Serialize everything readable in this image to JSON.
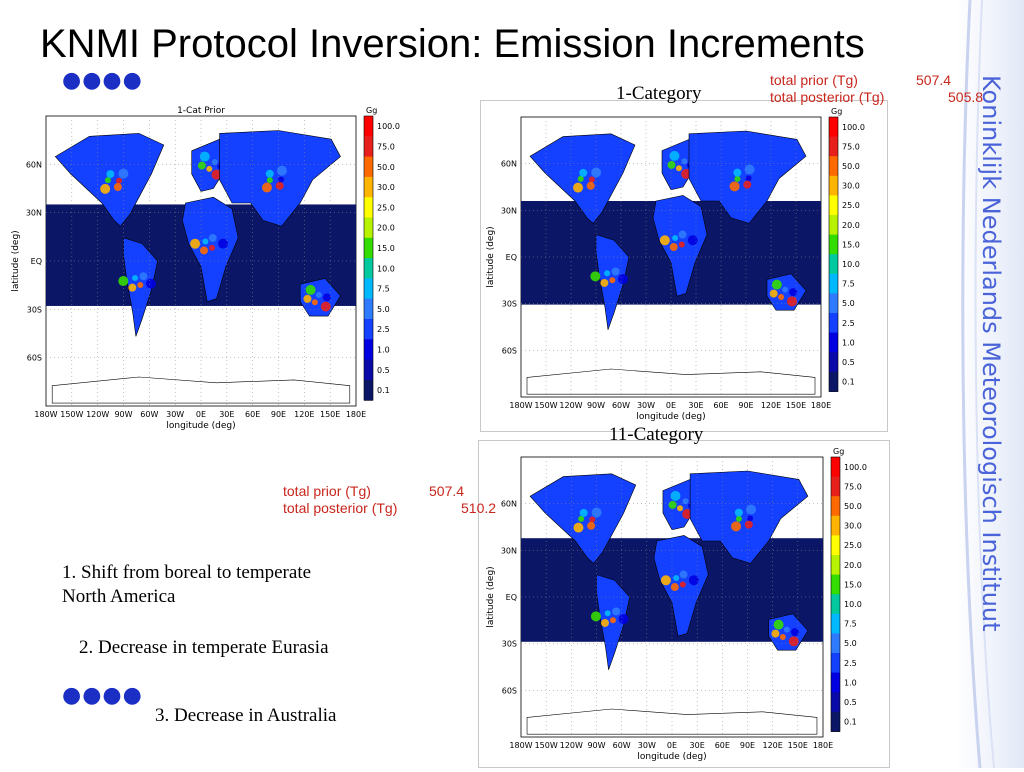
{
  "slide": {
    "title": "KNMI Protocol Inversion: Emission Increments",
    "logo_text": "Koninklijk Nederlands Meteorologisch Instituut"
  },
  "panels": {
    "prior": {
      "plot_title": "1-Cat Prior",
      "unit": "Gg",
      "ylabel": "latitude (deg)",
      "xlabel": "longitude (deg)",
      "x_ticks": [
        "180W",
        "150W",
        "120W",
        "90W",
        "60W",
        "30W",
        "0E",
        "30E",
        "60E",
        "90E",
        "120E",
        "150E",
        "180E"
      ],
      "y_ticks": [
        "60N",
        "30N",
        "EQ",
        "30S",
        "60S"
      ],
      "colorbar_ticks": [
        "100.0",
        "75.0",
        "50.0",
        "30.0",
        "25.0",
        "20.0",
        "15.0",
        "10.0",
        "7.5",
        "5.0",
        "2.5",
        "1.0",
        "0.5",
        "0.1"
      ]
    },
    "one_category": {
      "label": "1-Category",
      "unit": "Gg",
      "ylabel": "latitude (deg)",
      "xlabel": "longitude (deg)",
      "x_ticks": [
        "180W",
        "150W",
        "120W",
        "90W",
        "60W",
        "30W",
        "0E",
        "30E",
        "60E",
        "90E",
        "120E",
        "150E",
        "180E"
      ],
      "y_ticks": [
        "60N",
        "30N",
        "EQ",
        "30S",
        "60S"
      ],
      "colorbar_ticks": [
        "100.0",
        "75.0",
        "50.0",
        "30.0",
        "25.0",
        "20.0",
        "15.0",
        "10.0",
        "7.5",
        "5.0",
        "2.5",
        "1.0",
        "0.5",
        "0.1"
      ],
      "total_prior_label": "total prior (Tg)",
      "total_prior_value": "507.4",
      "total_posterior_label": "total posterior (Tg)",
      "total_posterior_value": "505.8"
    },
    "eleven_category": {
      "label": "11-Category",
      "unit": "Gg",
      "ylabel": "latitude (deg)",
      "xlabel": "longitude (deg)",
      "x_ticks": [
        "180W",
        "150W",
        "120W",
        "90W",
        "60W",
        "30W",
        "0E",
        "30E",
        "60E",
        "90E",
        "120E",
        "150E",
        "180E"
      ],
      "y_ticks": [
        "60N",
        "30N",
        "EQ",
        "30S",
        "60S"
      ],
      "colorbar_ticks": [
        "100.0",
        "75.0",
        "50.0",
        "30.0",
        "25.0",
        "20.0",
        "15.0",
        "10.0",
        "7.5",
        "5.0",
        "2.5",
        "1.0",
        "0.5",
        "0.1"
      ],
      "total_prior_label": "total prior (Tg)",
      "total_prior_value": "507.4",
      "total_posterior_label": "total posterior (Tg)",
      "total_posterior_value": "510.2"
    }
  },
  "notes": {
    "n1_line1": "1. Shift from boreal to temperate",
    "n1_line2": "North America",
    "n2": "2. Decrease in temperate Eurasia",
    "n3": "3. Decrease in Australia"
  },
  "colors": {
    "ocean_band": "#0b1766",
    "accent_blue": "#1c2fc4",
    "annotation_red": "#c8261c",
    "colorbar": [
      "#ff0000",
      "#e8201c",
      "#ff6a00",
      "#ffb400",
      "#ffff00",
      "#b7f200",
      "#33dd00",
      "#00c9a0",
      "#00b8ff",
      "#2f7bff",
      "#1440ff",
      "#0000e0",
      "#0a0aa8",
      "#0b1766"
    ]
  },
  "icons": {
    "bullet_dots": "blue-dot-row-icon"
  }
}
